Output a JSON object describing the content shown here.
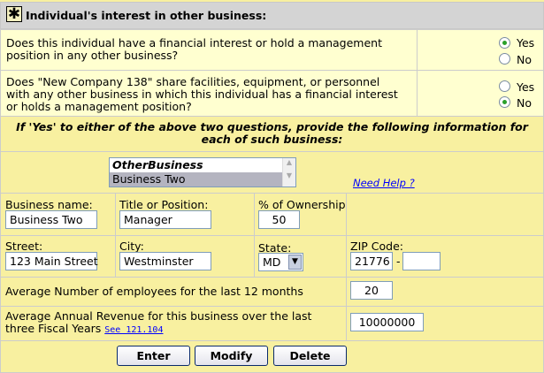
{
  "header": {
    "icon": "asterisk-icon",
    "title": "Individual's interest in other business:"
  },
  "questions": [
    {
      "text": "Does this individual have a financial interest or hold a management position in any other business?",
      "yes": "Yes",
      "no": "No",
      "selected": "Yes"
    },
    {
      "text": "Does \"New Company 138\" share facilities, equipment, or personnel with any other business in which this individual has a financial interest or holds a management position?",
      "yes": "Yes",
      "no": "No",
      "selected": "No"
    }
  ],
  "instruction": "If 'Yes' to either of the above two questions, provide the following information for each of such business:",
  "list": {
    "header": "OtherBusiness",
    "items": [
      "Business Two"
    ],
    "selected": "Business Two",
    "help_link": "Need Help ?"
  },
  "fields": {
    "business_name": {
      "label": "Business name:",
      "value": "Business Two"
    },
    "title": {
      "label": "Title or Position:",
      "value": "Manager"
    },
    "ownership": {
      "label": "% of Ownership",
      "value": "50"
    },
    "street": {
      "label": "Street:",
      "value": "123 Main Street"
    },
    "city": {
      "label": "City:",
      "value": "Westminster"
    },
    "state": {
      "label": "State:",
      "value": "MD"
    },
    "zip": {
      "label": "ZIP Code:",
      "value": "21776",
      "separator": "-",
      "ext": ""
    },
    "employees": {
      "label": "Average Number of employees for the last 12 months",
      "value": "20"
    },
    "revenue": {
      "label": "Average Annual Revenue for this business over the last three Fiscal Years",
      "link": "See 121.104",
      "value": "10000000"
    }
  },
  "buttons": {
    "enter": "Enter",
    "modify": "Modify",
    "delete": "Delete"
  },
  "colors": {
    "header_bg": "#d4d4d4",
    "question_bg": "#ffffd0",
    "form_bg": "#f8f0a0",
    "link": "#0000ff"
  }
}
